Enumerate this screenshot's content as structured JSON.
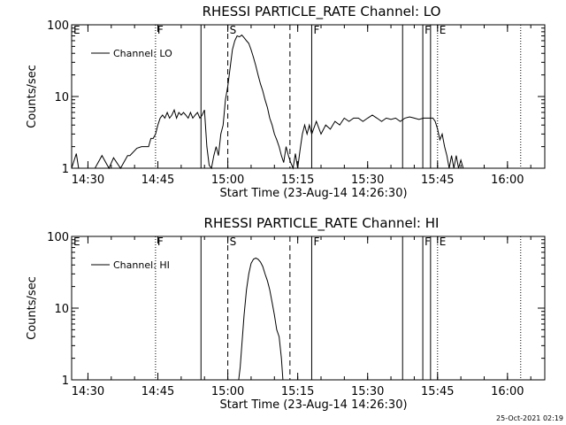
{
  "timestamp": "25-Oct-2021 02:19",
  "chart_data": [
    {
      "type": "line",
      "title": "RHESSI PARTICLE_RATE Channel: LO",
      "xlabel": "Start Time (23-Aug-14 14:26:30)",
      "ylabel": "Counts/sec",
      "y_scale": "log",
      "ylim": [
        1,
        100
      ],
      "xlim": [
        "14:26:30",
        "16:08:00"
      ],
      "x_ticks": [
        "14:30",
        "14:45",
        "15:00",
        "15:15",
        "15:30",
        "15:45",
        "16:00"
      ],
      "y_ticks": [
        "1",
        "10",
        "100"
      ],
      "legend": {
        "label": "Channel: LO",
        "position": "top-left"
      },
      "annotations": [
        {
          "label": "E",
          "time": "14:26:30",
          "style": "none"
        },
        {
          "label": "F",
          "time": "14:44:30",
          "style": "dotted"
        },
        {
          "label": "",
          "time": "14:54:15",
          "style": "solid"
        },
        {
          "label": "S",
          "time": "15:00:00",
          "style": "dashed"
        },
        {
          "label": "",
          "time": "15:13:20",
          "style": "dashed"
        },
        {
          "label": "F",
          "time": "15:18:00",
          "style": "solid"
        },
        {
          "label": "",
          "time": "15:37:30",
          "style": "solid"
        },
        {
          "label": "F",
          "time": "15:41:50",
          "style": "solid"
        },
        {
          "label": "",
          "time": "15:43:30",
          "style": "solid"
        },
        {
          "label": "E",
          "time": "15:45:00",
          "style": "dotted"
        },
        {
          "label": "",
          "time": "16:02:50",
          "style": "dotted"
        }
      ],
      "series": [
        {
          "x": [
            "14:26:30",
            "14:27:30",
            "14:28:00",
            "14:31:30",
            "14:33:00",
            "14:34:30",
            "14:35:30",
            "14:37:00",
            "14:38:30",
            "14:39:00",
            "14:40:30",
            "14:41:30",
            "14:42:00",
            "14:43:00",
            "14:43:30",
            "14:44:00",
            "14:44:30",
            "14:45:00",
            "14:45:30",
            "14:46:00",
            "14:46:30",
            "14:47:00",
            "14:47:30",
            "14:48:00",
            "14:48:30",
            "14:49:00",
            "14:49:30",
            "14:50:00",
            "14:50:30",
            "14:51:00",
            "14:51:30",
            "14:52:00",
            "14:52:30",
            "14:53:00",
            "14:53:30",
            "14:54:00",
            "14:54:30",
            "14:55:00",
            "14:55:30",
            "14:56:00",
            "14:56:30",
            "14:57:00",
            "14:57:30",
            "14:58:00",
            "14:58:30",
            "14:59:00",
            "14:59:30",
            "15:00:00",
            "15:00:30",
            "15:01:00",
            "15:01:30",
            "15:02:00",
            "15:02:30",
            "15:03:00",
            "15:03:30",
            "15:04:00",
            "15:04:30",
            "15:05:00",
            "15:05:30",
            "15:06:00",
            "15:06:30",
            "15:07:00",
            "15:07:30",
            "15:08:00",
            "15:08:30",
            "15:09:00",
            "15:09:30",
            "15:10:00",
            "15:10:30",
            "15:11:00",
            "15:11:30",
            "15:12:00",
            "15:12:30",
            "15:13:00",
            "15:13:30",
            "15:14:00",
            "15:14:30",
            "15:15:00",
            "15:15:30",
            "15:16:00",
            "15:16:30",
            "15:17:00",
            "15:17:30",
            "15:18:00",
            "15:19:00",
            "15:20:00",
            "15:21:00",
            "15:22:00",
            "15:23:00",
            "15:24:00",
            "15:25:00",
            "15:26:00",
            "15:27:00",
            "15:28:00",
            "15:29:00",
            "15:30:00",
            "15:31:00",
            "15:32:00",
            "15:33:00",
            "15:34:00",
            "15:35:00",
            "15:36:00",
            "15:37:00",
            "15:38:00",
            "15:39:00",
            "15:40:00",
            "15:41:00",
            "15:42:00",
            "15:43:00",
            "15:43:30",
            "15:44:00",
            "15:44:30",
            "15:45:00",
            "15:45:30",
            "15:46:00",
            "15:46:30",
            "15:47:00",
            "15:47:30",
            "15:48:00",
            "15:48:30",
            "15:49:00",
            "15:49:30",
            "15:50:00",
            "15:50:30",
            "15:51:00",
            "15:52:00",
            "15:53:00",
            "15:54:00",
            "15:55:00"
          ],
          "y": [
            1,
            1.6,
            1,
            1,
            1.5,
            1,
            1.4,
            1,
            1.5,
            1.5,
            1.9,
            2,
            2,
            2,
            2.6,
            2.6,
            3,
            4,
            5,
            5.5,
            5,
            6,
            5,
            5.5,
            6.5,
            5,
            6,
            5.5,
            6,
            5.5,
            5,
            6,
            5,
            5.5,
            6,
            5,
            5.5,
            6.5,
            2,
            1.1,
            1,
            1.5,
            2,
            1.5,
            3,
            4,
            9,
            14,
            25,
            45,
            60,
            70,
            68,
            72,
            66,
            60,
            55,
            45,
            35,
            27,
            20,
            15,
            12,
            9,
            7,
            5,
            4,
            3,
            2.5,
            2,
            1.5,
            1.2,
            2,
            1.5,
            1.2,
            1,
            1.6,
            1,
            1.8,
            3,
            4,
            3,
            4,
            3,
            4.5,
            3,
            4,
            3.5,
            4.5,
            4,
            5,
            4.5,
            5,
            5,
            4.5,
            5,
            5.5,
            5,
            4.5,
            5,
            4.8,
            5,
            4.5,
            5,
            5.2,
            5,
            4.8,
            5,
            5,
            5,
            5,
            4.5,
            3.5,
            2.5,
            3,
            2,
            1.5,
            1,
            1.5,
            1,
            1.5,
            1,
            1.3,
            1,
            1,
            1,
            1,
            1,
            1
          ]
        }
      ]
    },
    {
      "type": "line",
      "title": "RHESSI PARTICLE_RATE Channel: HI",
      "xlabel": "Start Time (23-Aug-14 14:26:30)",
      "ylabel": "Counts/sec",
      "y_scale": "log",
      "ylim": [
        1,
        100
      ],
      "xlim": [
        "14:26:30",
        "16:08:00"
      ],
      "x_ticks": [
        "14:30",
        "14:45",
        "15:00",
        "15:15",
        "15:30",
        "15:45",
        "16:00"
      ],
      "y_ticks": [
        "1",
        "10",
        "100"
      ],
      "legend": {
        "label": "Channel: HI",
        "position": "top-left"
      },
      "annotations": [
        {
          "label": "E",
          "time": "14:26:30",
          "style": "none"
        },
        {
          "label": "F",
          "time": "14:44:30",
          "style": "dotted"
        },
        {
          "label": "",
          "time": "14:54:15",
          "style": "solid"
        },
        {
          "label": "S",
          "time": "15:00:00",
          "style": "dashed"
        },
        {
          "label": "",
          "time": "15:13:20",
          "style": "dashed"
        },
        {
          "label": "F",
          "time": "15:18:00",
          "style": "solid"
        },
        {
          "label": "",
          "time": "15:37:30",
          "style": "solid"
        },
        {
          "label": "F",
          "time": "15:41:50",
          "style": "solid"
        },
        {
          "label": "",
          "time": "15:43:30",
          "style": "solid"
        },
        {
          "label": "E",
          "time": "15:45:00",
          "style": "dotted"
        },
        {
          "label": "",
          "time": "16:02:50",
          "style": "dotted"
        }
      ],
      "series": [
        {
          "x": [
            "15:02:20",
            "15:02:40",
            "15:03:00",
            "15:03:30",
            "15:04:00",
            "15:04:30",
            "15:05:00",
            "15:05:30",
            "15:06:00",
            "15:06:30",
            "15:07:00",
            "15:07:30",
            "15:08:00",
            "15:08:30",
            "15:09:00",
            "15:09:30",
            "15:10:00",
            "15:10:30",
            "15:11:00",
            "15:11:30",
            "15:11:50"
          ],
          "y": [
            1,
            1.5,
            3,
            8,
            18,
            30,
            42,
            48,
            50,
            48,
            44,
            38,
            30,
            24,
            18,
            12,
            8,
            5,
            4,
            2,
            1
          ]
        }
      ]
    }
  ]
}
